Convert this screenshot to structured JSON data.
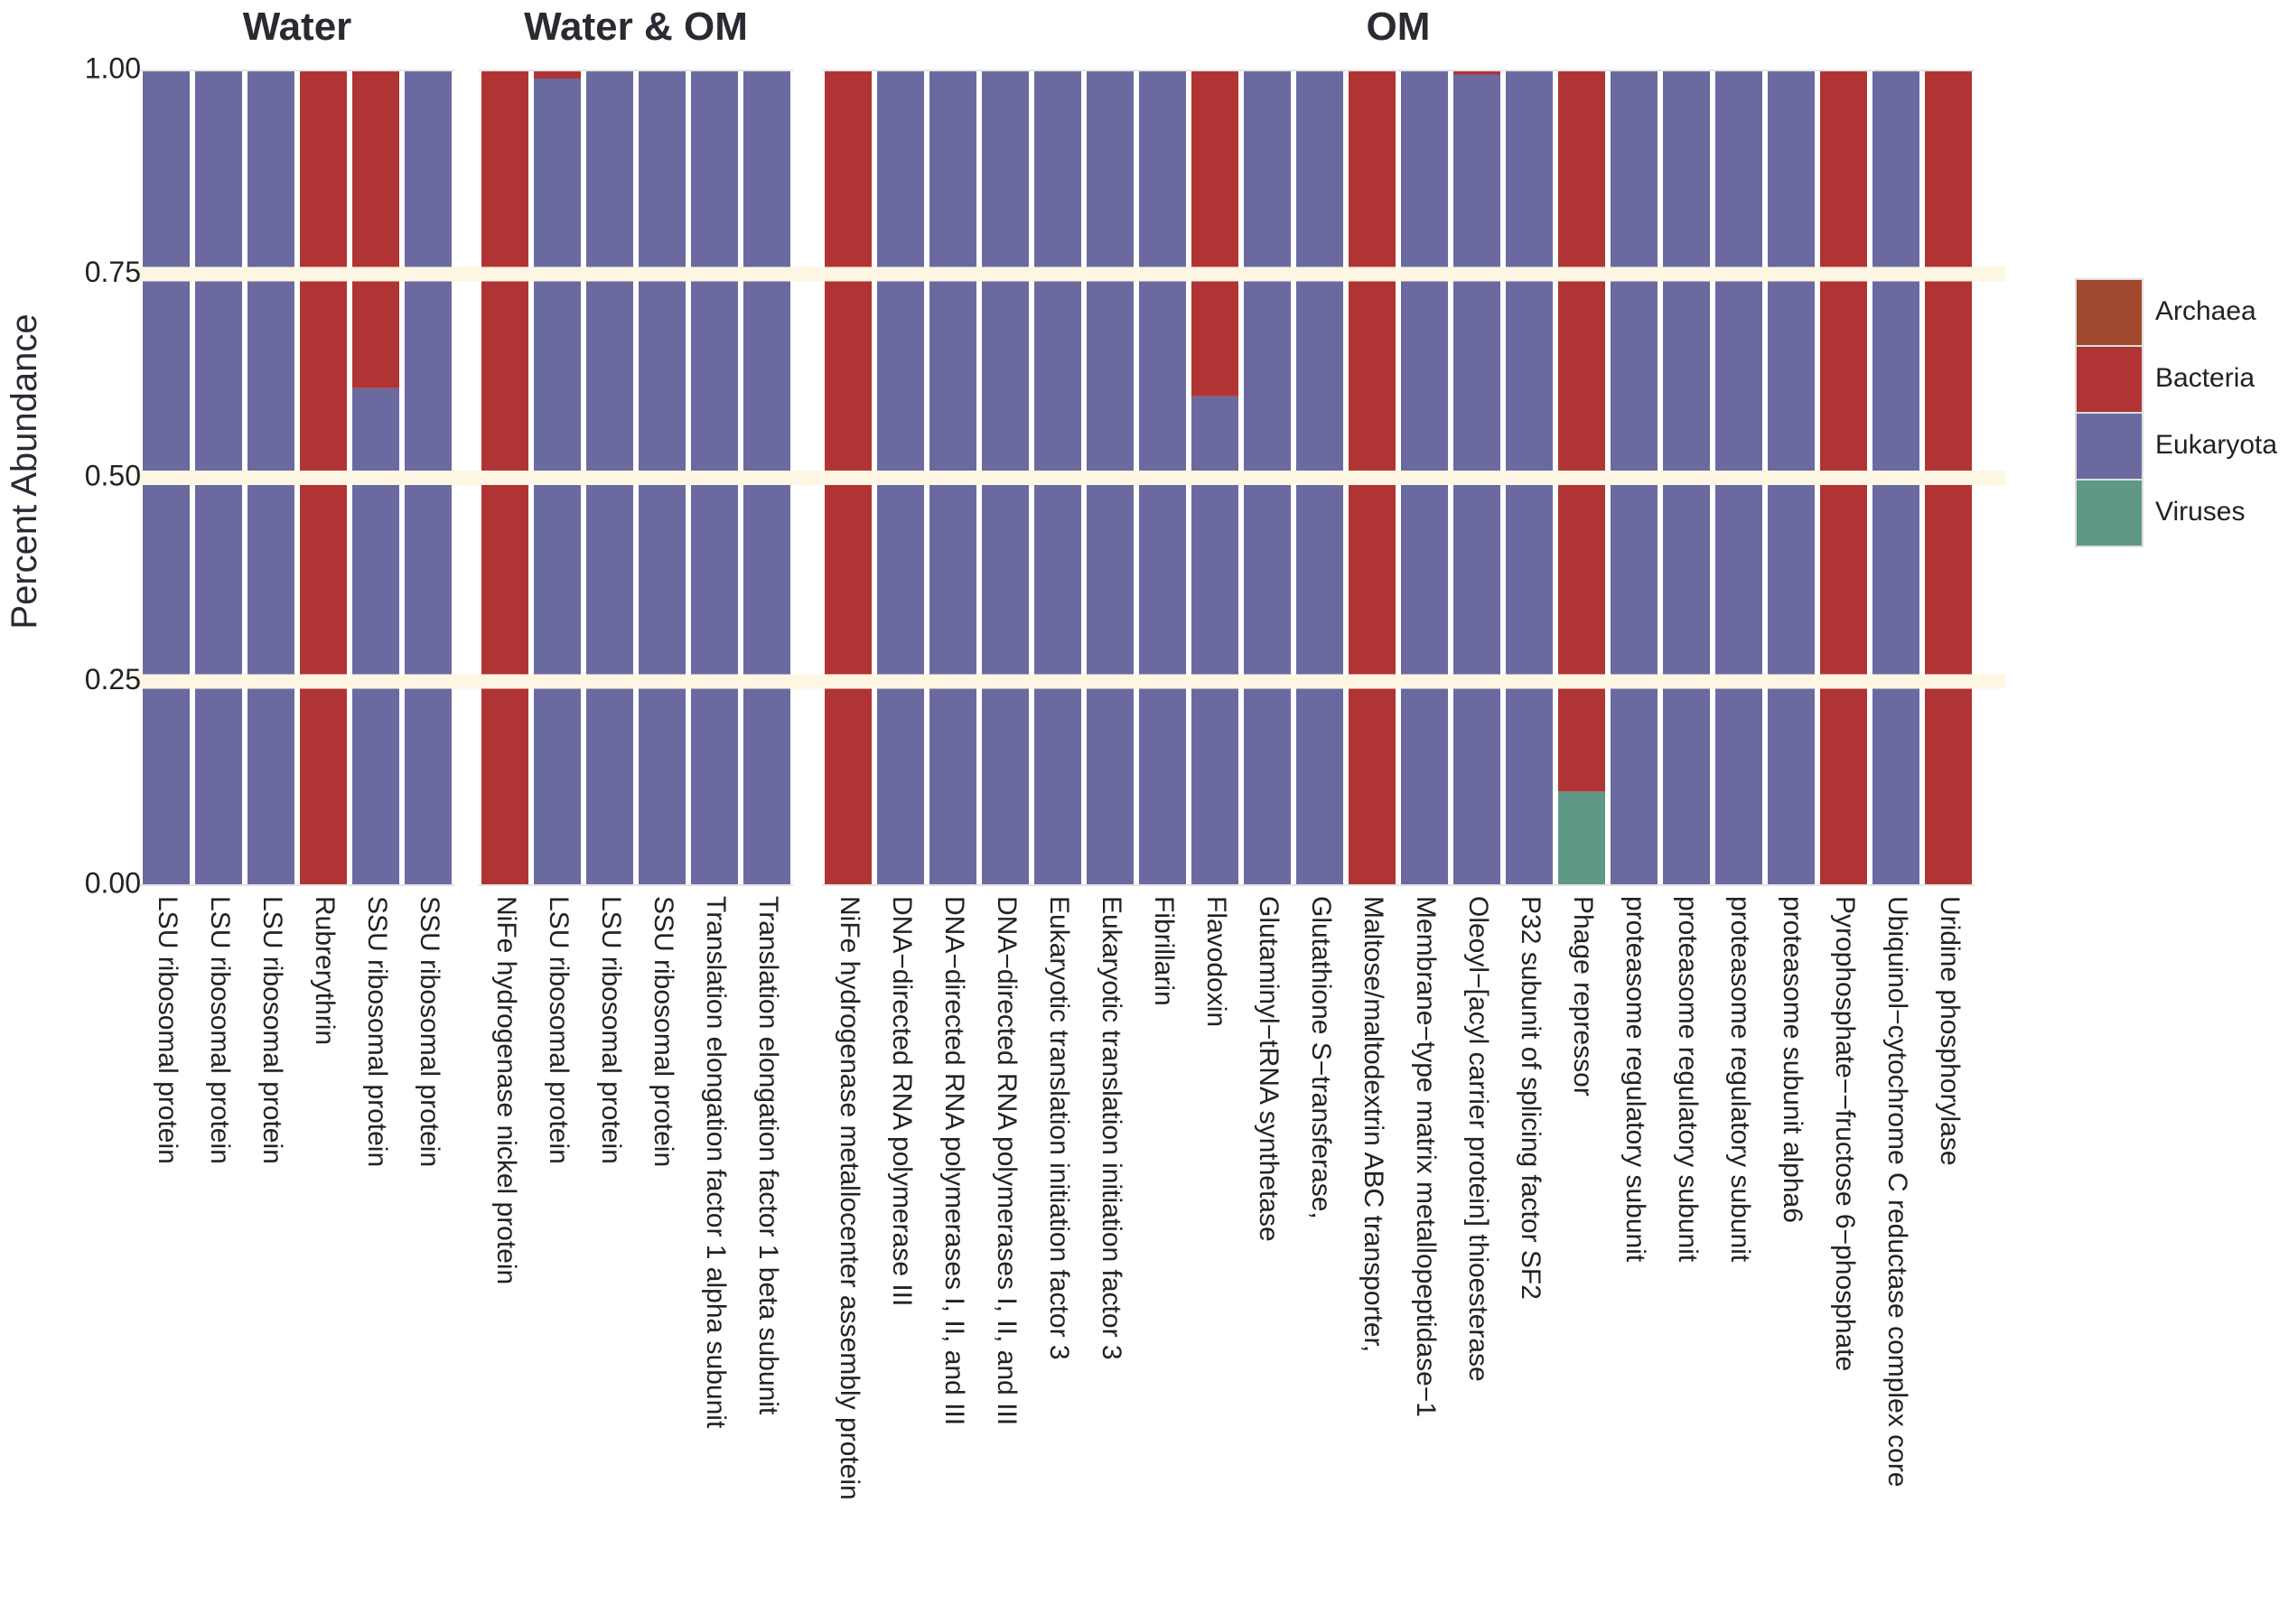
{
  "chart_data": {
    "type": "bar",
    "stacked": true,
    "ylabel": "Percent Abundance",
    "xlabel": "",
    "ylim": [
      0,
      1
    ],
    "yticks": [
      "0.00",
      "0.25",
      "0.50",
      "0.75",
      "1.00"
    ],
    "legend": {
      "position": "right",
      "entries": [
        {
          "name": "Archaea",
          "color": "#a0492e"
        },
        {
          "name": "Bacteria",
          "color": "#b03434"
        },
        {
          "name": "Eukaryota",
          "color": "#6b6aa0"
        },
        {
          "name": "Viruses",
          "color": "#5f9886"
        }
      ]
    },
    "facets": [
      {
        "title": "Water",
        "bars": [
          {
            "label": "LSU ribosomal protein",
            "values": {
              "Archaea": 0,
              "Bacteria": 0,
              "Eukaryota": 1,
              "Viruses": 0
            }
          },
          {
            "label": "LSU ribosomal protein",
            "values": {
              "Archaea": 0,
              "Bacteria": 0,
              "Eukaryota": 1,
              "Viruses": 0
            }
          },
          {
            "label": "LSU ribosomal protein",
            "values": {
              "Archaea": 0,
              "Bacteria": 0,
              "Eukaryota": 1,
              "Viruses": 0
            }
          },
          {
            "label": "Rubrerythrin",
            "values": {
              "Archaea": 0,
              "Bacteria": 1,
              "Eukaryota": 0,
              "Viruses": 0
            }
          },
          {
            "label": "SSU ribosomal protein",
            "values": {
              "Archaea": 0,
              "Bacteria": 0.39,
              "Eukaryota": 0.61,
              "Viruses": 0
            }
          },
          {
            "label": "SSU ribosomal protein",
            "values": {
              "Archaea": 0,
              "Bacteria": 0,
              "Eukaryota": 1,
              "Viruses": 0
            }
          }
        ]
      },
      {
        "title": "Water & OM",
        "bars": [
          {
            "label": "NiFe hydrogenase nickel protein",
            "values": {
              "Archaea": 0,
              "Bacteria": 1,
              "Eukaryota": 0,
              "Viruses": 0
            }
          },
          {
            "label": "LSU ribosomal protein",
            "values": {
              "Archaea": 0,
              "Bacteria": 0.01,
              "Eukaryota": 0.99,
              "Viruses": 0
            }
          },
          {
            "label": "LSU ribosomal protein",
            "values": {
              "Archaea": 0,
              "Bacteria": 0,
              "Eukaryota": 1,
              "Viruses": 0
            }
          },
          {
            "label": "SSU ribosomal protein",
            "values": {
              "Archaea": 0,
              "Bacteria": 0,
              "Eukaryota": 1,
              "Viruses": 0
            }
          },
          {
            "label": "Translation elongation factor 1 alpha subunit",
            "values": {
              "Archaea": 0,
              "Bacteria": 0,
              "Eukaryota": 1,
              "Viruses": 0
            }
          },
          {
            "label": "Translation elongation factor 1 beta subunit",
            "values": {
              "Archaea": 0,
              "Bacteria": 0,
              "Eukaryota": 1,
              "Viruses": 0
            }
          }
        ]
      },
      {
        "title": "OM",
        "bars": [
          {
            "label": "NiFe hydrogenase metallocenter assembly protein",
            "values": {
              "Archaea": 0,
              "Bacteria": 1,
              "Eukaryota": 0,
              "Viruses": 0
            }
          },
          {
            "label": "DNA−directed RNA polymerase III",
            "values": {
              "Archaea": 0,
              "Bacteria": 0,
              "Eukaryota": 1,
              "Viruses": 0
            }
          },
          {
            "label": "DNA−directed RNA polymerases I, II, and III",
            "values": {
              "Archaea": 0,
              "Bacteria": 0,
              "Eukaryota": 1,
              "Viruses": 0
            }
          },
          {
            "label": "DNA−directed RNA polymerases I, II, and III",
            "values": {
              "Archaea": 0,
              "Bacteria": 0,
              "Eukaryota": 1,
              "Viruses": 0
            }
          },
          {
            "label": "Eukaryotic translation initiation factor 3",
            "values": {
              "Archaea": 0,
              "Bacteria": 0,
              "Eukaryota": 1,
              "Viruses": 0
            }
          },
          {
            "label": "Eukaryotic translation initiation factor 3",
            "values": {
              "Archaea": 0,
              "Bacteria": 0,
              "Eukaryota": 1,
              "Viruses": 0
            }
          },
          {
            "label": "Fibrillarin",
            "values": {
              "Archaea": 0,
              "Bacteria": 0,
              "Eukaryota": 1,
              "Viruses": 0
            }
          },
          {
            "label": "Flavodoxin",
            "values": {
              "Archaea": 0,
              "Bacteria": 0.4,
              "Eukaryota": 0.6,
              "Viruses": 0
            }
          },
          {
            "label": "Glutaminyl−tRNA synthetase",
            "values": {
              "Archaea": 0,
              "Bacteria": 0,
              "Eukaryota": 1,
              "Viruses": 0
            }
          },
          {
            "label": "Glutathione S−transferase,",
            "values": {
              "Archaea": 0,
              "Bacteria": 0,
              "Eukaryota": 1,
              "Viruses": 0
            }
          },
          {
            "label": "Maltose/maltodextrin ABC transporter,",
            "values": {
              "Archaea": 0,
              "Bacteria": 1,
              "Eukaryota": 0,
              "Viruses": 0
            }
          },
          {
            "label": "Membrane−type matrix metallopeptidase−1",
            "values": {
              "Archaea": 0,
              "Bacteria": 0,
              "Eukaryota": 1,
              "Viruses": 0
            }
          },
          {
            "label": "Oleoyl−[acyl carrier protein] thioesterase",
            "values": {
              "Archaea": 0,
              "Bacteria": 0.005,
              "Eukaryota": 0.995,
              "Viruses": 0
            }
          },
          {
            "label": "P32 subunit of splicing factor SF2",
            "values": {
              "Archaea": 0,
              "Bacteria": 0,
              "Eukaryota": 1,
              "Viruses": 0
            }
          },
          {
            "label": "Phage repressor",
            "values": {
              "Archaea": 0,
              "Bacteria": 0.885,
              "Eukaryota": 0,
              "Viruses": 0.115
            }
          },
          {
            "label": "proteasome regulatory subunit",
            "values": {
              "Archaea": 0,
              "Bacteria": 0,
              "Eukaryota": 1,
              "Viruses": 0
            }
          },
          {
            "label": "proteasome regulatory subunit",
            "values": {
              "Archaea": 0,
              "Bacteria": 0,
              "Eukaryota": 1,
              "Viruses": 0
            }
          },
          {
            "label": "proteasome regulatory subunit",
            "values": {
              "Archaea": 0,
              "Bacteria": 0,
              "Eukaryota": 1,
              "Viruses": 0
            }
          },
          {
            "label": "proteasome subunit alpha6",
            "values": {
              "Archaea": 0,
              "Bacteria": 0,
              "Eukaryota": 1,
              "Viruses": 0
            }
          },
          {
            "label": "Pyrophosphate−−fructose 6−phosphate",
            "values": {
              "Archaea": 0,
              "Bacteria": 1,
              "Eukaryota": 0,
              "Viruses": 0
            }
          },
          {
            "label": "Ubiquinol−cytochrome C reductase complex core",
            "values": {
              "Archaea": 0,
              "Bacteria": 0,
              "Eukaryota": 1,
              "Viruses": 0
            }
          },
          {
            "label": "Uridine phosphorylase",
            "values": {
              "Archaea": 0,
              "Bacteria": 1,
              "Eukaryota": 0,
              "Viruses": 0
            }
          }
        ]
      }
    ]
  }
}
